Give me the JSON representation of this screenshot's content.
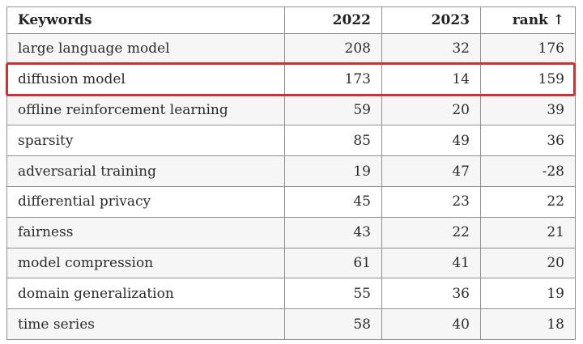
{
  "chart_data": {
    "type": "table",
    "title": "",
    "columns": [
      "Keywords",
      "2022",
      "2023",
      "rank ↑"
    ],
    "rows": [
      {
        "keyword": "large language model",
        "v2022": 208,
        "v2023": 32,
        "rank": 176,
        "shaded": true,
        "highlighted": false
      },
      {
        "keyword": "diffusion model",
        "v2022": 173,
        "v2023": 14,
        "rank": 159,
        "shaded": false,
        "highlighted": true
      },
      {
        "keyword": "offline reinforcement learning",
        "v2022": 59,
        "v2023": 20,
        "rank": 39,
        "shaded": true,
        "highlighted": false
      },
      {
        "keyword": "sparsity",
        "v2022": 85,
        "v2023": 49,
        "rank": 36,
        "shaded": false,
        "highlighted": false
      },
      {
        "keyword": "adversarial training",
        "v2022": 19,
        "v2023": 47,
        "rank": -28,
        "shaded": true,
        "highlighted": false
      },
      {
        "keyword": "differential privacy",
        "v2022": 45,
        "v2023": 23,
        "rank": 22,
        "shaded": false,
        "highlighted": false
      },
      {
        "keyword": "fairness",
        "v2022": 43,
        "v2023": 22,
        "rank": 21,
        "shaded": true,
        "highlighted": false
      },
      {
        "keyword": "model compression",
        "v2022": 61,
        "v2023": 41,
        "rank": 20,
        "shaded": true,
        "highlighted": false
      },
      {
        "keyword": "domain generalization",
        "v2022": 55,
        "v2023": 36,
        "rank": 19,
        "shaded": false,
        "highlighted": false
      },
      {
        "keyword": "time series",
        "v2022": 58,
        "v2023": 40,
        "rank": 18,
        "shaded": true,
        "highlighted": false
      }
    ],
    "highlighted_row_keyword": "diffusion model",
    "sort_indicator_icon": "up-arrow-icon",
    "colors": {
      "highlight_border": "#cc3232",
      "table_border": "#8f8f8f",
      "shaded_row": "#f6f6f7",
      "row_background": "#ffffff",
      "text": "#2b2b2b"
    }
  }
}
